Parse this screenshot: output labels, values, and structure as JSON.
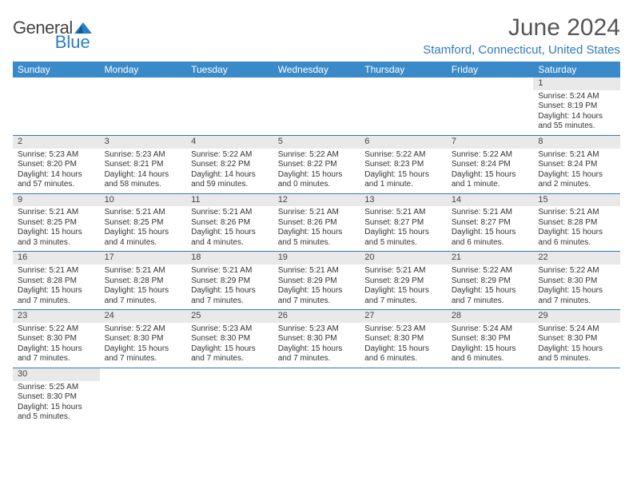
{
  "logo": {
    "general": "General",
    "blue": "Blue"
  },
  "title": "June 2024",
  "location": "Stamford, Connecticut, United States",
  "colors": {
    "header_bg": "#3a8ac9",
    "header_text": "#ffffff",
    "location_text": "#2f7bbf",
    "title_text": "#555555",
    "daynum_bg": "#e9e9e9",
    "row_border": "#2f7bbf",
    "body_text": "#333333"
  },
  "daysOfWeek": [
    "Sunday",
    "Monday",
    "Tuesday",
    "Wednesday",
    "Thursday",
    "Friday",
    "Saturday"
  ],
  "weeks": [
    [
      null,
      null,
      null,
      null,
      null,
      null,
      {
        "n": "1",
        "sunrise": "Sunrise: 5:24 AM",
        "sunset": "Sunset: 8:19 PM",
        "daylight1": "Daylight: 14 hours",
        "daylight2": "and 55 minutes."
      }
    ],
    [
      {
        "n": "2",
        "sunrise": "Sunrise: 5:23 AM",
        "sunset": "Sunset: 8:20 PM",
        "daylight1": "Daylight: 14 hours",
        "daylight2": "and 57 minutes."
      },
      {
        "n": "3",
        "sunrise": "Sunrise: 5:23 AM",
        "sunset": "Sunset: 8:21 PM",
        "daylight1": "Daylight: 14 hours",
        "daylight2": "and 58 minutes."
      },
      {
        "n": "4",
        "sunrise": "Sunrise: 5:22 AM",
        "sunset": "Sunset: 8:22 PM",
        "daylight1": "Daylight: 14 hours",
        "daylight2": "and 59 minutes."
      },
      {
        "n": "5",
        "sunrise": "Sunrise: 5:22 AM",
        "sunset": "Sunset: 8:22 PM",
        "daylight1": "Daylight: 15 hours",
        "daylight2": "and 0 minutes."
      },
      {
        "n": "6",
        "sunrise": "Sunrise: 5:22 AM",
        "sunset": "Sunset: 8:23 PM",
        "daylight1": "Daylight: 15 hours",
        "daylight2": "and 1 minute."
      },
      {
        "n": "7",
        "sunrise": "Sunrise: 5:22 AM",
        "sunset": "Sunset: 8:24 PM",
        "daylight1": "Daylight: 15 hours",
        "daylight2": "and 1 minute."
      },
      {
        "n": "8",
        "sunrise": "Sunrise: 5:21 AM",
        "sunset": "Sunset: 8:24 PM",
        "daylight1": "Daylight: 15 hours",
        "daylight2": "and 2 minutes."
      }
    ],
    [
      {
        "n": "9",
        "sunrise": "Sunrise: 5:21 AM",
        "sunset": "Sunset: 8:25 PM",
        "daylight1": "Daylight: 15 hours",
        "daylight2": "and 3 minutes."
      },
      {
        "n": "10",
        "sunrise": "Sunrise: 5:21 AM",
        "sunset": "Sunset: 8:25 PM",
        "daylight1": "Daylight: 15 hours",
        "daylight2": "and 4 minutes."
      },
      {
        "n": "11",
        "sunrise": "Sunrise: 5:21 AM",
        "sunset": "Sunset: 8:26 PM",
        "daylight1": "Daylight: 15 hours",
        "daylight2": "and 4 minutes."
      },
      {
        "n": "12",
        "sunrise": "Sunrise: 5:21 AM",
        "sunset": "Sunset: 8:26 PM",
        "daylight1": "Daylight: 15 hours",
        "daylight2": "and 5 minutes."
      },
      {
        "n": "13",
        "sunrise": "Sunrise: 5:21 AM",
        "sunset": "Sunset: 8:27 PM",
        "daylight1": "Daylight: 15 hours",
        "daylight2": "and 5 minutes."
      },
      {
        "n": "14",
        "sunrise": "Sunrise: 5:21 AM",
        "sunset": "Sunset: 8:27 PM",
        "daylight1": "Daylight: 15 hours",
        "daylight2": "and 6 minutes."
      },
      {
        "n": "15",
        "sunrise": "Sunrise: 5:21 AM",
        "sunset": "Sunset: 8:28 PM",
        "daylight1": "Daylight: 15 hours",
        "daylight2": "and 6 minutes."
      }
    ],
    [
      {
        "n": "16",
        "sunrise": "Sunrise: 5:21 AM",
        "sunset": "Sunset: 8:28 PM",
        "daylight1": "Daylight: 15 hours",
        "daylight2": "and 7 minutes."
      },
      {
        "n": "17",
        "sunrise": "Sunrise: 5:21 AM",
        "sunset": "Sunset: 8:28 PM",
        "daylight1": "Daylight: 15 hours",
        "daylight2": "and 7 minutes."
      },
      {
        "n": "18",
        "sunrise": "Sunrise: 5:21 AM",
        "sunset": "Sunset: 8:29 PM",
        "daylight1": "Daylight: 15 hours",
        "daylight2": "and 7 minutes."
      },
      {
        "n": "19",
        "sunrise": "Sunrise: 5:21 AM",
        "sunset": "Sunset: 8:29 PM",
        "daylight1": "Daylight: 15 hours",
        "daylight2": "and 7 minutes."
      },
      {
        "n": "20",
        "sunrise": "Sunrise: 5:21 AM",
        "sunset": "Sunset: 8:29 PM",
        "daylight1": "Daylight: 15 hours",
        "daylight2": "and 7 minutes."
      },
      {
        "n": "21",
        "sunrise": "Sunrise: 5:22 AM",
        "sunset": "Sunset: 8:29 PM",
        "daylight1": "Daylight: 15 hours",
        "daylight2": "and 7 minutes."
      },
      {
        "n": "22",
        "sunrise": "Sunrise: 5:22 AM",
        "sunset": "Sunset: 8:30 PM",
        "daylight1": "Daylight: 15 hours",
        "daylight2": "and 7 minutes."
      }
    ],
    [
      {
        "n": "23",
        "sunrise": "Sunrise: 5:22 AM",
        "sunset": "Sunset: 8:30 PM",
        "daylight1": "Daylight: 15 hours",
        "daylight2": "and 7 minutes."
      },
      {
        "n": "24",
        "sunrise": "Sunrise: 5:22 AM",
        "sunset": "Sunset: 8:30 PM",
        "daylight1": "Daylight: 15 hours",
        "daylight2": "and 7 minutes."
      },
      {
        "n": "25",
        "sunrise": "Sunrise: 5:23 AM",
        "sunset": "Sunset: 8:30 PM",
        "daylight1": "Daylight: 15 hours",
        "daylight2": "and 7 minutes."
      },
      {
        "n": "26",
        "sunrise": "Sunrise: 5:23 AM",
        "sunset": "Sunset: 8:30 PM",
        "daylight1": "Daylight: 15 hours",
        "daylight2": "and 7 minutes."
      },
      {
        "n": "27",
        "sunrise": "Sunrise: 5:23 AM",
        "sunset": "Sunset: 8:30 PM",
        "daylight1": "Daylight: 15 hours",
        "daylight2": "and 6 minutes."
      },
      {
        "n": "28",
        "sunrise": "Sunrise: 5:24 AM",
        "sunset": "Sunset: 8:30 PM",
        "daylight1": "Daylight: 15 hours",
        "daylight2": "and 6 minutes."
      },
      {
        "n": "29",
        "sunrise": "Sunrise: 5:24 AM",
        "sunset": "Sunset: 8:30 PM",
        "daylight1": "Daylight: 15 hours",
        "daylight2": "and 5 minutes."
      }
    ],
    [
      {
        "n": "30",
        "sunrise": "Sunrise: 5:25 AM",
        "sunset": "Sunset: 8:30 PM",
        "daylight1": "Daylight: 15 hours",
        "daylight2": "and 5 minutes."
      },
      null,
      null,
      null,
      null,
      null,
      null
    ]
  ]
}
